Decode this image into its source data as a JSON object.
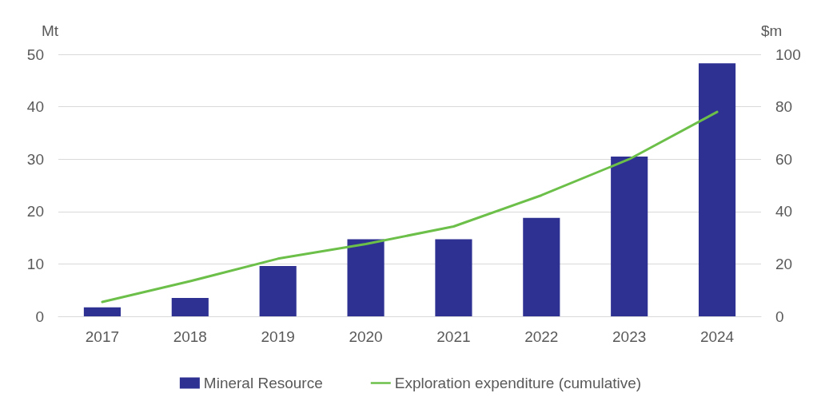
{
  "chart_data": {
    "type": "bar",
    "ylabel": "Mt",
    "y2label": "$m",
    "categories": [
      "2017",
      "2018",
      "2019",
      "2020",
      "2021",
      "2022",
      "2023",
      "2024"
    ],
    "series": [
      {
        "name": "Mineral Resource",
        "color": "#2e3192",
        "values": [
          1.7,
          3.5,
          9.6,
          14.7,
          14.7,
          18.8,
          30.5,
          48.3
        ]
      },
      {
        "name": "Exploration expenditure (cumulative)",
        "type": "line",
        "axis": "y2",
        "color": "#6cc04a",
        "values": [
          5.5,
          13.4,
          22,
          27.6,
          34.3,
          46.2,
          60,
          78
        ]
      }
    ],
    "ylim": [
      0,
      50
    ],
    "yticks": [
      0,
      10,
      20,
      30,
      40,
      50
    ],
    "y2lim": [
      0,
      100
    ],
    "y2ticks": [
      0,
      20,
      40,
      60,
      80,
      100
    ],
    "grid": "y",
    "legend": "bottom",
    "marker": "none",
    "line_style": "solid"
  }
}
